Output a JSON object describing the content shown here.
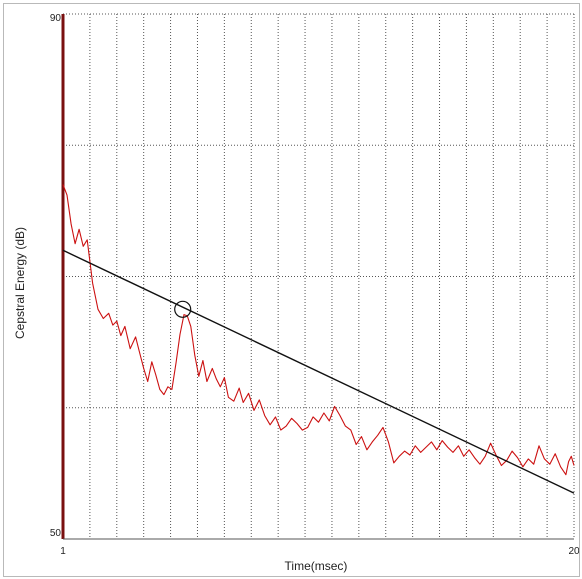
{
  "chart_data": {
    "type": "line",
    "xlabel": "Time(msec)",
    "ylabel": "Cepstral Energy (dB)",
    "xlim": [
      1,
      20
    ],
    "ylim": [
      50,
      90
    ],
    "x_tick_labels": [
      "1",
      "20"
    ],
    "y_tick_labels": [
      "90",
      "50"
    ],
    "grid": true,
    "grid_style": "dotted",
    "x_grid_count": 19,
    "y_grid_count": 4,
    "series": [
      {
        "color": "#cc1111",
        "points": [
          [
            1.0,
            77.0
          ],
          [
            1.15,
            76.2
          ],
          [
            1.3,
            74.0
          ],
          [
            1.45,
            72.5
          ],
          [
            1.6,
            73.6
          ],
          [
            1.75,
            72.3
          ],
          [
            1.9,
            72.8
          ],
          [
            2.1,
            69.5
          ],
          [
            2.3,
            67.5
          ],
          [
            2.5,
            66.8
          ],
          [
            2.7,
            67.2
          ],
          [
            2.85,
            66.3
          ],
          [
            3.0,
            66.6
          ],
          [
            3.15,
            65.5
          ],
          [
            3.3,
            66.2
          ],
          [
            3.5,
            64.5
          ],
          [
            3.7,
            65.4
          ],
          [
            3.85,
            64.2
          ],
          [
            4.0,
            63.0
          ],
          [
            4.15,
            62.0
          ],
          [
            4.3,
            63.5
          ],
          [
            4.45,
            62.5
          ],
          [
            4.6,
            61.4
          ],
          [
            4.75,
            61.0
          ],
          [
            4.9,
            61.6
          ],
          [
            5.05,
            61.4
          ],
          [
            5.2,
            63.4
          ],
          [
            5.35,
            65.6
          ],
          [
            5.5,
            67.1
          ],
          [
            5.62,
            67.0
          ],
          [
            5.75,
            66.2
          ],
          [
            5.9,
            64.0
          ],
          [
            6.05,
            62.4
          ],
          [
            6.2,
            63.6
          ],
          [
            6.35,
            62.0
          ],
          [
            6.55,
            63.0
          ],
          [
            6.7,
            62.2
          ],
          [
            6.85,
            61.6
          ],
          [
            7.0,
            62.3
          ],
          [
            7.15,
            60.8
          ],
          [
            7.35,
            60.5
          ],
          [
            7.55,
            61.5
          ],
          [
            7.7,
            60.4
          ],
          [
            7.9,
            61.1
          ],
          [
            8.1,
            59.8
          ],
          [
            8.3,
            60.6
          ],
          [
            8.5,
            59.4
          ],
          [
            8.7,
            58.7
          ],
          [
            8.9,
            59.3
          ],
          [
            9.1,
            58.3
          ],
          [
            9.3,
            58.6
          ],
          [
            9.5,
            59.2
          ],
          [
            9.7,
            58.8
          ],
          [
            9.9,
            58.3
          ],
          [
            10.1,
            58.5
          ],
          [
            10.3,
            59.3
          ],
          [
            10.5,
            58.9
          ],
          [
            10.7,
            59.6
          ],
          [
            10.9,
            59.0
          ],
          [
            11.1,
            60.1
          ],
          [
            11.3,
            59.4
          ],
          [
            11.5,
            58.6
          ],
          [
            11.7,
            58.3
          ],
          [
            11.9,
            57.2
          ],
          [
            12.1,
            57.8
          ],
          [
            12.3,
            56.8
          ],
          [
            12.5,
            57.4
          ],
          [
            12.7,
            57.9
          ],
          [
            12.9,
            58.5
          ],
          [
            13.1,
            57.4
          ],
          [
            13.3,
            55.8
          ],
          [
            13.5,
            56.3
          ],
          [
            13.7,
            56.7
          ],
          [
            13.9,
            56.4
          ],
          [
            14.1,
            57.1
          ],
          [
            14.3,
            56.6
          ],
          [
            14.5,
            57.0
          ],
          [
            14.7,
            57.4
          ],
          [
            14.9,
            56.8
          ],
          [
            15.1,
            57.5
          ],
          [
            15.3,
            57.0
          ],
          [
            15.5,
            56.6
          ],
          [
            15.7,
            57.1
          ],
          [
            15.9,
            56.3
          ],
          [
            16.1,
            56.8
          ],
          [
            16.3,
            56.2
          ],
          [
            16.5,
            55.7
          ],
          [
            16.7,
            56.3
          ],
          [
            16.9,
            57.3
          ],
          [
            17.1,
            56.4
          ],
          [
            17.3,
            55.6
          ],
          [
            17.5,
            56.0
          ],
          [
            17.7,
            56.7
          ],
          [
            17.9,
            56.2
          ],
          [
            18.1,
            55.5
          ],
          [
            18.3,
            56.1
          ],
          [
            18.5,
            55.7
          ],
          [
            18.7,
            57.1
          ],
          [
            18.9,
            56.1
          ],
          [
            19.1,
            55.7
          ],
          [
            19.3,
            56.5
          ],
          [
            19.5,
            55.5
          ],
          [
            19.7,
            54.9
          ],
          [
            19.8,
            55.9
          ],
          [
            19.9,
            56.3
          ],
          [
            20.0,
            55.6
          ]
        ]
      },
      {
        "color": "#111111",
        "points": [
          [
            1.0,
            72.0
          ],
          [
            20.0,
            53.5
          ]
        ]
      }
    ],
    "peak_marker": {
      "x": 5.45,
      "y": 67.5
    }
  },
  "colors": {
    "left_axis": "#7a1010",
    "grid": "#555555",
    "frame_border": "#b9b9b9"
  }
}
